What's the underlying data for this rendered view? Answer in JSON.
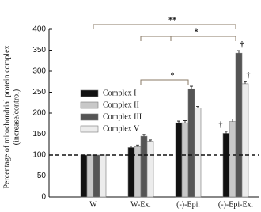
{
  "chart_data": {
    "type": "bar",
    "ylabel": [
      "Percentage of mitochondrial protein complex",
      "(increase/control)"
    ],
    "categories": [
      "W",
      "W-Ex.",
      "(-)-Epi.",
      "(-)-Epi-Ex."
    ],
    "series": [
      {
        "name": "Complex I",
        "color": "#111111",
        "values": [
          100,
          118,
          177,
          152
        ],
        "errors": [
          0,
          4,
          4,
          5
        ]
      },
      {
        "name": "Complex II",
        "color": "#c8c8c8",
        "values": [
          100,
          120,
          177,
          180
        ],
        "errors": [
          0,
          4,
          5,
          6
        ]
      },
      {
        "name": "Complex III",
        "color": "#555555",
        "values": [
          100,
          145,
          258,
          343
        ],
        "errors": [
          0,
          4,
          6,
          6
        ]
      },
      {
        "name": "Complex V",
        "color": "#ececec",
        "values": [
          100,
          133,
          212,
          270
        ],
        "errors": [
          0,
          3,
          4,
          5
        ]
      }
    ],
    "reference_line": 100,
    "ylim": [
      0,
      400
    ],
    "yticks": [
      0,
      50,
      100,
      150,
      200,
      250,
      300,
      350,
      400
    ],
    "significance_labels": [
      "**",
      "*",
      "*"
    ],
    "dagger_labels": [
      "†",
      "†",
      "†"
    ]
  }
}
